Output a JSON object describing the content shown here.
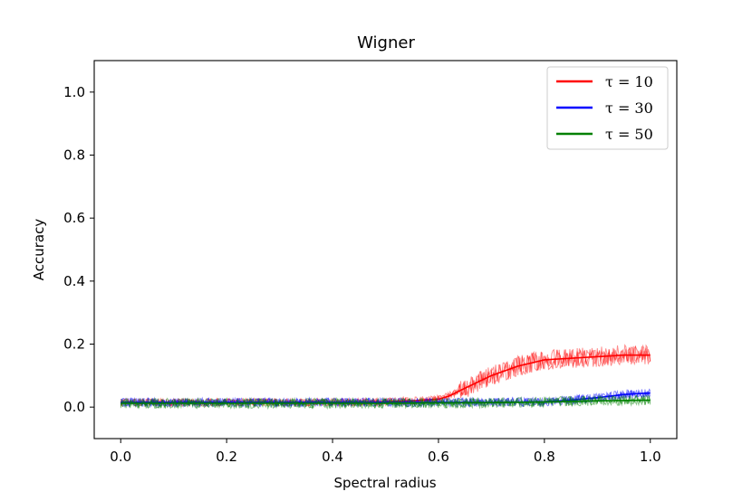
{
  "chart_data": {
    "type": "line",
    "title": "Wigner",
    "xlabel": "Spectral radius",
    "ylabel": "Accuracy",
    "xlim": [
      -0.05,
      1.05
    ],
    "ylim": [
      -0.1,
      1.1
    ],
    "xticks": [
      "0.0",
      "0.2",
      "0.4",
      "0.6",
      "0.8",
      "1.0"
    ],
    "yticks": [
      "0.0",
      "0.2",
      "0.4",
      "0.6",
      "0.8",
      "1.0"
    ],
    "grid": false,
    "legend_position": "top-right",
    "series": [
      {
        "name": "τ = 10",
        "color": "#ff0000",
        "x": [
          0.0,
          0.1,
          0.2,
          0.3,
          0.4,
          0.5,
          0.55,
          0.6,
          0.62,
          0.65,
          0.7,
          0.75,
          0.8,
          0.85,
          0.9,
          0.95,
          1.0
        ],
        "y": [
          0.015,
          0.015,
          0.015,
          0.015,
          0.015,
          0.017,
          0.02,
          0.025,
          0.035,
          0.06,
          0.1,
          0.13,
          0.15,
          0.155,
          0.16,
          0.165,
          0.165
        ]
      },
      {
        "name": "τ = 30",
        "color": "#0000ff",
        "x": [
          0.0,
          0.1,
          0.2,
          0.3,
          0.4,
          0.5,
          0.6,
          0.7,
          0.8,
          0.85,
          0.9,
          0.95,
          1.0
        ],
        "y": [
          0.015,
          0.015,
          0.015,
          0.015,
          0.015,
          0.015,
          0.015,
          0.015,
          0.017,
          0.022,
          0.03,
          0.04,
          0.045
        ]
      },
      {
        "name": "τ = 50",
        "color": "#008000",
        "x": [
          0.0,
          0.1,
          0.2,
          0.3,
          0.4,
          0.5,
          0.6,
          0.7,
          0.8,
          0.9,
          1.0
        ],
        "y": [
          0.012,
          0.012,
          0.012,
          0.012,
          0.012,
          0.012,
          0.013,
          0.014,
          0.016,
          0.02,
          0.022
        ]
      }
    ]
  }
}
